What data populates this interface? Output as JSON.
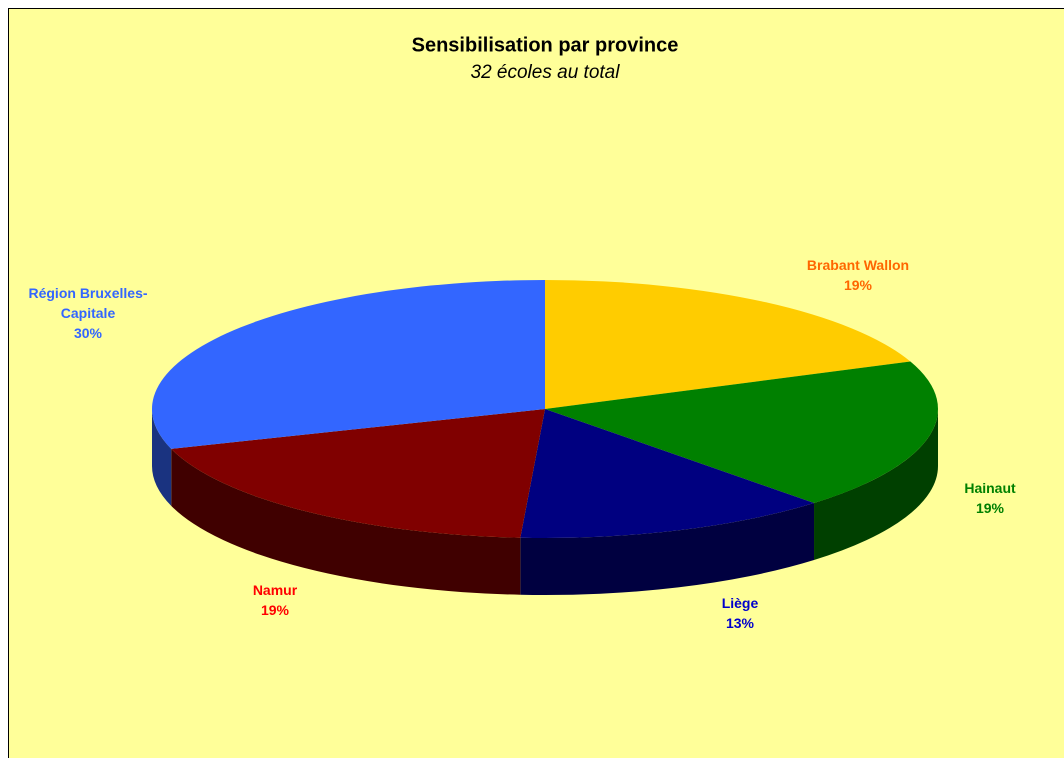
{
  "chart_data": {
    "type": "pie3d",
    "title": "Sensibilisation par province",
    "subtitle": "32 écoles au total",
    "categories": [
      "Brabant Wallon",
      "Hainaut",
      "Liège",
      "Namur",
      "Région Bruxelles-Capitale"
    ],
    "values": [
      19,
      19,
      13,
      19,
      30
    ],
    "value_labels": [
      "19%",
      "19%",
      "13%",
      "19%",
      "30%"
    ],
    "colors": [
      "#ffcc00",
      "#008000",
      "#000080",
      "#800000",
      "#3366ff"
    ],
    "label_colors": [
      "#ff6600",
      "#008000",
      "#0000cc",
      "#ff0000",
      "#3366ff"
    ]
  }
}
